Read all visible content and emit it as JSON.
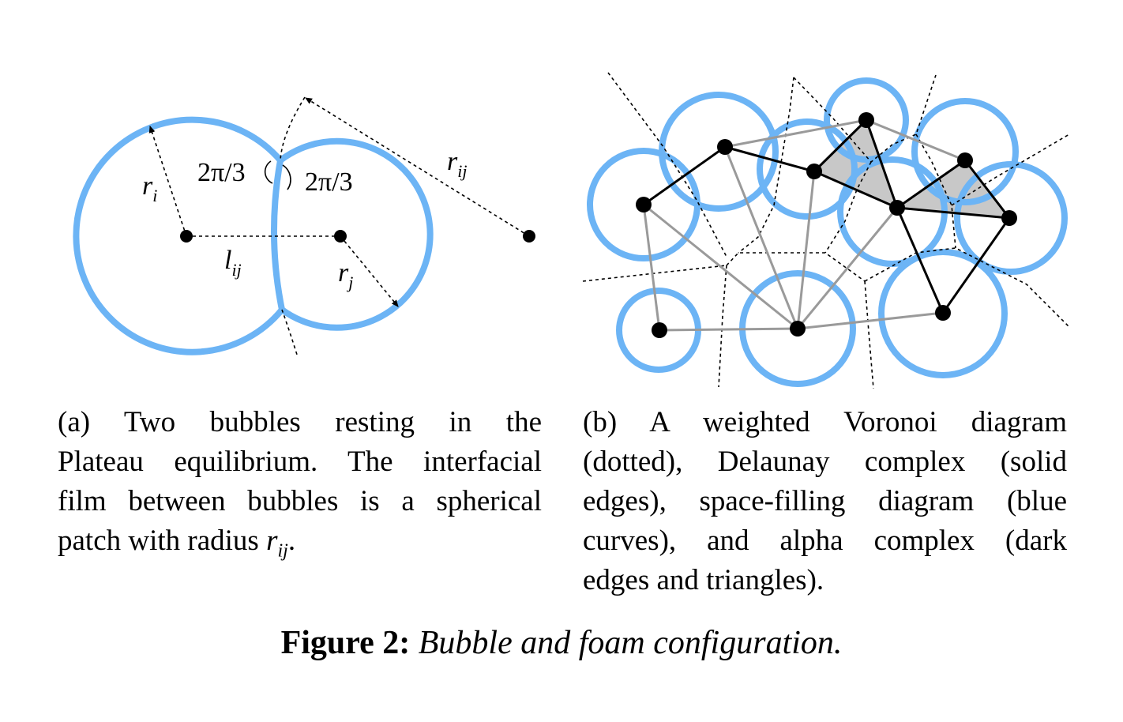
{
  "panel_a": {
    "angle_left": "2π/3",
    "angle_right": "2π/3",
    "label_ri_base": "r",
    "label_ri_sub": "i",
    "label_rj_base": "r",
    "label_rj_sub": "j",
    "label_lij_base": "l",
    "label_lij_sub": "ij",
    "label_rij_base": "r",
    "label_rij_sub": "ij"
  },
  "caption_a": {
    "line1": "(a) Two bubbles resting in the",
    "line2": "Plateau equilibrium. The interfacial",
    "line3": "film between bubbles is a spherical",
    "line4_text": "patch with radius ",
    "line4_math_base": "r",
    "line4_math_sub": "ij",
    "line4_end": "."
  },
  "caption_b": {
    "line1": "(b) A weighted Voronoi diagram",
    "line2": "(dotted), Delaunay complex (solid",
    "line3": "edges), space-filling diagram (blue",
    "line4": "curves), and alpha complex (dark",
    "line5": "edges and triangles)."
  },
  "figure": {
    "label": "Figure 2:",
    "title": "Bubble and foam configuration."
  },
  "colors": {
    "bubble_stroke": "#6cb4f5",
    "dark_edge": "#000000",
    "gray_edge": "#9a9a9a",
    "triangle_fill": "#c8c8c8"
  }
}
